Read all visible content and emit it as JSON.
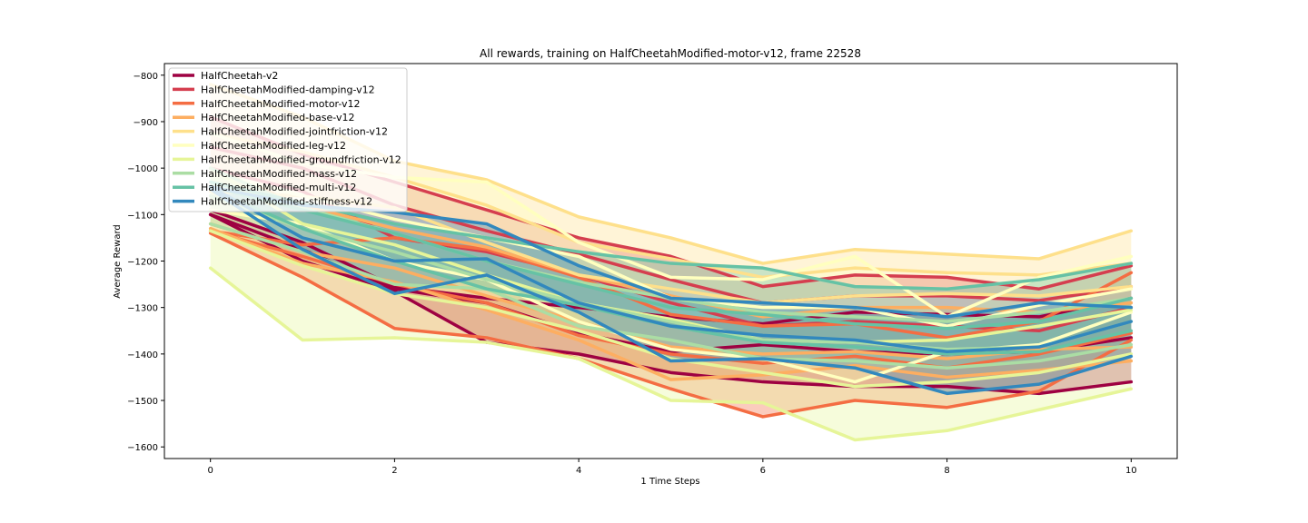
{
  "chart_data": {
    "type": "line",
    "title": "All rewards, training on HalfCheetahModified-motor-v12, frame 22528",
    "xlabel": "1 Time Steps",
    "ylabel": "Average Reward",
    "xlim": [
      -0.5,
      10.5
    ],
    "ylim": [
      -1625,
      -775
    ],
    "xticks": [
      0,
      2,
      4,
      6,
      8,
      10
    ],
    "yticks": [
      -800,
      -900,
      -1000,
      -1100,
      -1200,
      -1300,
      -1400,
      -1500,
      -1600
    ],
    "x": [
      0,
      1,
      2,
      3,
      4,
      5,
      6,
      7,
      8,
      9,
      10
    ],
    "grid": false,
    "legend_position": "upper-left",
    "band_opacity": 0.35,
    "series": [
      {
        "name": "HalfCheetah-v2",
        "color": "#9e0142",
        "mean": [
          -1100,
          -1175,
          -1260,
          -1290,
          -1355,
          -1395,
          -1380,
          -1395,
          -1400,
          -1395,
          -1365
        ],
        "upper": [
          -1090,
          -1160,
          -1255,
          -1280,
          -1300,
          -1320,
          -1335,
          -1310,
          -1315,
          -1320,
          -1280
        ],
        "lower": [
          -1100,
          -1200,
          -1265,
          -1375,
          -1400,
          -1440,
          -1460,
          -1470,
          -1470,
          -1485,
          -1460
        ]
      },
      {
        "name": "HalfCheetahModified-damping-v12",
        "color": "#d53e4f",
        "mean": [
          -955,
          -1000,
          -1080,
          -1135,
          -1185,
          -1240,
          -1290,
          -1275,
          -1275,
          -1285,
          -1255
        ],
        "upper": [
          -890,
          -970,
          -1030,
          -1090,
          -1150,
          -1190,
          -1255,
          -1230,
          -1235,
          -1260,
          -1210
        ],
        "lower": [
          -1000,
          -1050,
          -1150,
          -1180,
          -1230,
          -1290,
          -1340,
          -1330,
          -1340,
          -1350,
          -1300
        ]
      },
      {
        "name": "HalfCheetahModified-motor-v12",
        "color": "#f46d43",
        "mean": [
          -1135,
          -1190,
          -1250,
          -1290,
          -1360,
          -1400,
          -1420,
          -1405,
          -1430,
          -1400,
          -1355
        ],
        "upper": [
          -1135,
          -1165,
          -1150,
          -1175,
          -1235,
          -1315,
          -1340,
          -1335,
          -1365,
          -1330,
          -1225
        ],
        "lower": [
          -1140,
          -1235,
          -1345,
          -1365,
          -1410,
          -1475,
          -1535,
          -1500,
          -1515,
          -1480,
          -1370
        ]
      },
      {
        "name": "HalfCheetahModified-base-v12",
        "color": "#fdae61",
        "mean": [
          -1120,
          -1180,
          -1215,
          -1275,
          -1330,
          -1385,
          -1400,
          -1395,
          -1410,
          -1390,
          -1385
        ],
        "upper": [
          -1000,
          -1080,
          -1130,
          -1170,
          -1230,
          -1275,
          -1320,
          -1300,
          -1300,
          -1310,
          -1290
        ],
        "lower": [
          -1130,
          -1205,
          -1245,
          -1305,
          -1370,
          -1455,
          -1445,
          -1425,
          -1450,
          -1435,
          -1415
        ]
      },
      {
        "name": "HalfCheetahModified-jointfriction-v12",
        "color": "#fee08b",
        "mean": [
          -925,
          -965,
          -1020,
          -1080,
          -1160,
          -1195,
          -1235,
          -1215,
          -1225,
          -1230,
          -1205
        ],
        "upper": [
          -820,
          -890,
          -985,
          -1025,
          -1105,
          -1150,
          -1205,
          -1175,
          -1185,
          -1195,
          -1135
        ],
        "lower": [
          -1050,
          -1060,
          -1085,
          -1160,
          -1230,
          -1260,
          -1290,
          -1275,
          -1270,
          -1275,
          -1255
        ]
      },
      {
        "name": "HalfCheetahModified-leg-v12",
        "color": "#ffffbf",
        "mean": [
          -1010,
          -1060,
          -1110,
          -1150,
          -1190,
          -1280,
          -1300,
          -1300,
          -1340,
          -1295,
          -1260
        ],
        "upper": [
          -925,
          -990,
          -1020,
          -1030,
          -1160,
          -1235,
          -1240,
          -1190,
          -1320,
          -1235,
          -1190
        ],
        "lower": [
          -1090,
          -1120,
          -1200,
          -1240,
          -1330,
          -1390,
          -1410,
          -1460,
          -1395,
          -1380,
          -1310
        ]
      },
      {
        "name": "HalfCheetahModified-groundfriction-v12",
        "color": "#e6f598",
        "mean": [
          -1135,
          -1210,
          -1270,
          -1300,
          -1350,
          -1410,
          -1440,
          -1470,
          -1460,
          -1440,
          -1400
        ],
        "upper": [
          -1000,
          -1120,
          -1165,
          -1230,
          -1290,
          -1325,
          -1370,
          -1375,
          -1370,
          -1340,
          -1305
        ],
        "lower": [
          -1215,
          -1370,
          -1365,
          -1375,
          -1410,
          -1500,
          -1505,
          -1585,
          -1565,
          -1520,
          -1475
        ]
      },
      {
        "name": "HalfCheetahModified-mass-v12",
        "color": "#abdda4",
        "mean": [
          -1060,
          -1130,
          -1180,
          -1240,
          -1290,
          -1330,
          -1370,
          -1375,
          -1390,
          -1385,
          -1330
        ],
        "upper": [
          -1000,
          -1085,
          -1140,
          -1200,
          -1245,
          -1280,
          -1310,
          -1320,
          -1330,
          -1310,
          -1280
        ],
        "lower": [
          -1120,
          -1180,
          -1250,
          -1260,
          -1340,
          -1370,
          -1410,
          -1415,
          -1430,
          -1415,
          -1380
        ]
      },
      {
        "name": "HalfCheetahModified-multi-v12",
        "color": "#66c2a5",
        "mean": [
          -1040,
          -1090,
          -1140,
          -1200,
          -1250,
          -1300,
          -1315,
          -1335,
          -1345,
          -1330,
          -1280
        ],
        "upper": [
          -1030,
          -1075,
          -1120,
          -1150,
          -1180,
          -1205,
          -1215,
          -1255,
          -1260,
          -1240,
          -1205
        ],
        "lower": [
          -1045,
          -1130,
          -1200,
          -1260,
          -1295,
          -1340,
          -1375,
          -1385,
          -1400,
          -1395,
          -1350
        ]
      },
      {
        "name": "HalfCheetahModified-stiffness-v12",
        "color": "#3288bd",
        "mean": [
          -1040,
          -1150,
          -1200,
          -1195,
          -1290,
          -1340,
          -1360,
          -1370,
          -1395,
          -1385,
          -1330
        ],
        "upper": [
          -1040,
          -1080,
          -1095,
          -1120,
          -1210,
          -1280,
          -1290,
          -1300,
          -1320,
          -1290,
          -1300
        ],
        "lower": [
          -1045,
          -1175,
          -1270,
          -1230,
          -1310,
          -1415,
          -1410,
          -1430,
          -1485,
          -1465,
          -1405
        ]
      }
    ]
  }
}
